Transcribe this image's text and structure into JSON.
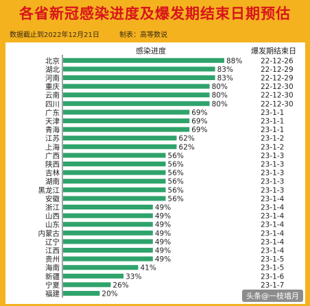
{
  "header": {
    "title": "各省新冠感染进度及爆发期结束日期预估",
    "date_note": "数据截止到2022年12月21日",
    "source_note": "制表：高等数说"
  },
  "chart_data": {
    "type": "bar",
    "orientation": "horizontal",
    "bar_color": "#2fa36b",
    "column_headers": {
      "progress": "感染进度",
      "end_date": "爆发期结束日"
    },
    "categories": [
      "北京",
      "湖北",
      "河南",
      "重庆",
      "云南",
      "四川",
      "广东",
      "天津",
      "青海",
      "江苏",
      "上海",
      "广西",
      "陕西",
      "吉林",
      "湖南",
      "黑龙江",
      "安徽",
      "浙江",
      "山西",
      "山东",
      "内蒙古",
      "辽宁",
      "江西",
      "贵州",
      "海南",
      "新疆",
      "宁夏",
      "福建"
    ],
    "values": [
      88,
      83,
      83,
      80,
      80,
      80,
      69,
      69,
      69,
      62,
      62,
      56,
      56,
      56,
      56,
      56,
      56,
      49,
      49,
      49,
      49,
      49,
      49,
      49,
      41,
      33,
      26,
      20
    ],
    "value_labels": [
      "88%",
      "83%",
      "83%",
      "80%",
      "80%",
      "80%",
      "69%",
      "69%",
      "69%",
      "62%",
      "62%",
      "56%",
      "56%",
      "56%",
      "56%",
      "56%",
      "56%",
      "49%",
      "49%",
      "49%",
      "49%",
      "49%",
      "49%",
      "49%",
      "41%",
      "33%",
      "26%",
      "20%"
    ],
    "end_dates": [
      "22-12-26",
      "22-12-29",
      "22-12-29",
      "22-12-30",
      "22-12-30",
      "22-12-30",
      "23-1-1",
      "23-1-1",
      "23-1-1",
      "23-1-2",
      "23-1-2",
      "23-1-3",
      "23-1-3",
      "23-1-3",
      "23-1-3",
      "23-1-3",
      "23-1-4",
      "23-1-4",
      "23-1-4",
      "23-1-4",
      "23-1-4",
      "23-1-4",
      "23-1-4",
      "23-1-5",
      "23-1-5",
      "23-1-6",
      "23-1-7",
      ""
    ],
    "xlim": [
      0,
      100
    ]
  },
  "watermark": "头条@一枝墙月"
}
